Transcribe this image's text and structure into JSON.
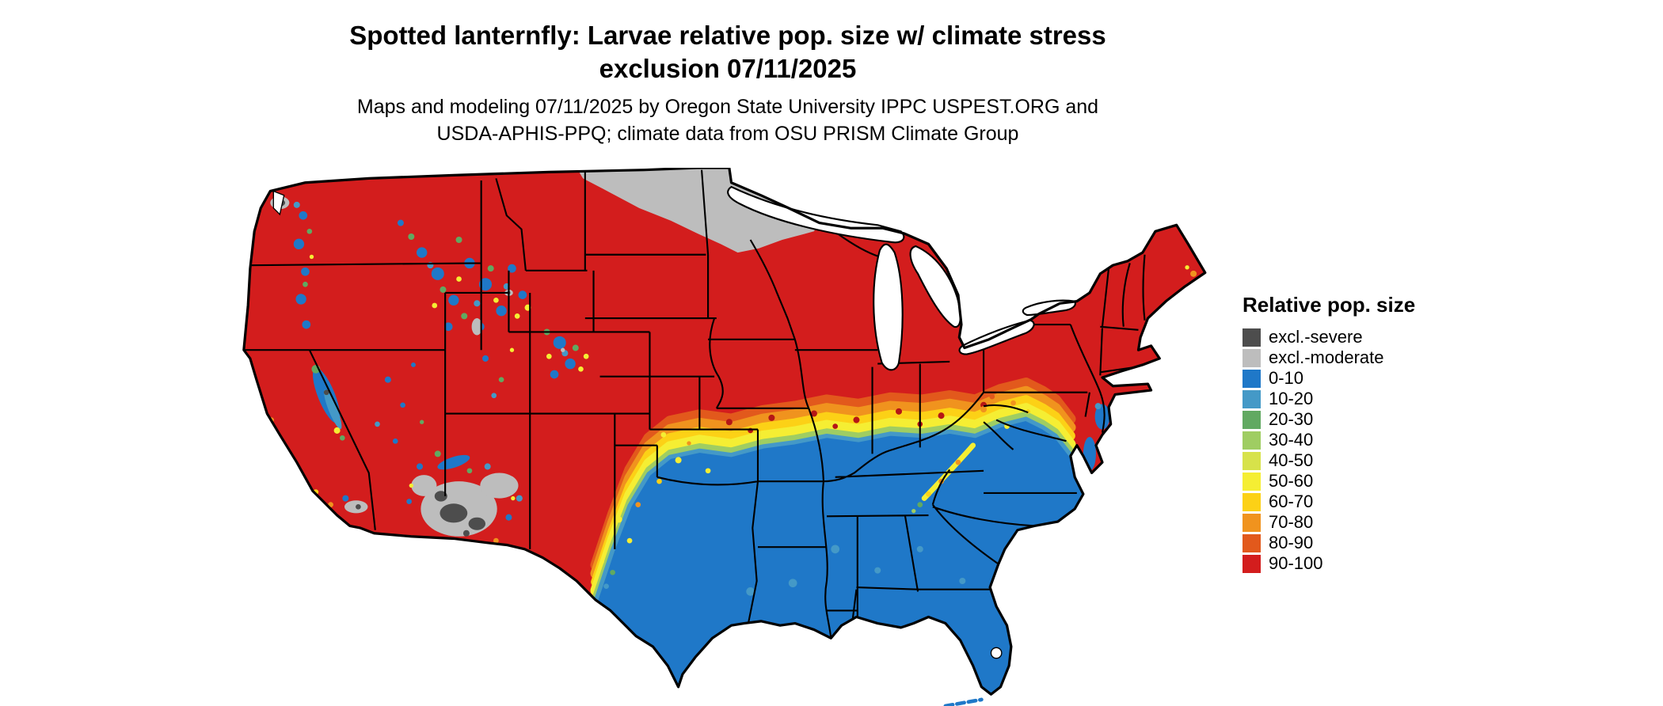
{
  "header": {
    "title_line1": "Spotted lanternfly: Larvae relative pop. size w/ climate stress",
    "title_line2": "exclusion 07/11/2025",
    "subtitle_line1": "Maps and modeling 07/11/2025 by Oregon State University IPPC USPEST.ORG and",
    "subtitle_line2": "USDA-APHIS-PPQ; climate data from OSU PRISM Climate Group"
  },
  "legend": {
    "title": "Relative pop. size",
    "items": [
      {
        "label": "excl.-severe",
        "color": "#4d4d4d"
      },
      {
        "label": "excl.-moderate",
        "color": "#bdbdbd"
      },
      {
        "label": "0-10",
        "color": "#1f78c8"
      },
      {
        "label": "10-20",
        "color": "#4499c7"
      },
      {
        "label": "20-30",
        "color": "#61a961"
      },
      {
        "label": "30-40",
        "color": "#9fcd62"
      },
      {
        "label": "40-50",
        "color": "#d7e24a"
      },
      {
        "label": "50-60",
        "color": "#f5ee33"
      },
      {
        "label": "60-70",
        "color": "#fcd116"
      },
      {
        "label": "70-80",
        "color": "#f0931e"
      },
      {
        "label": "80-90",
        "color": "#e2591c"
      },
      {
        "label": "90-100",
        "color": "#d31d1d"
      }
    ]
  }
}
